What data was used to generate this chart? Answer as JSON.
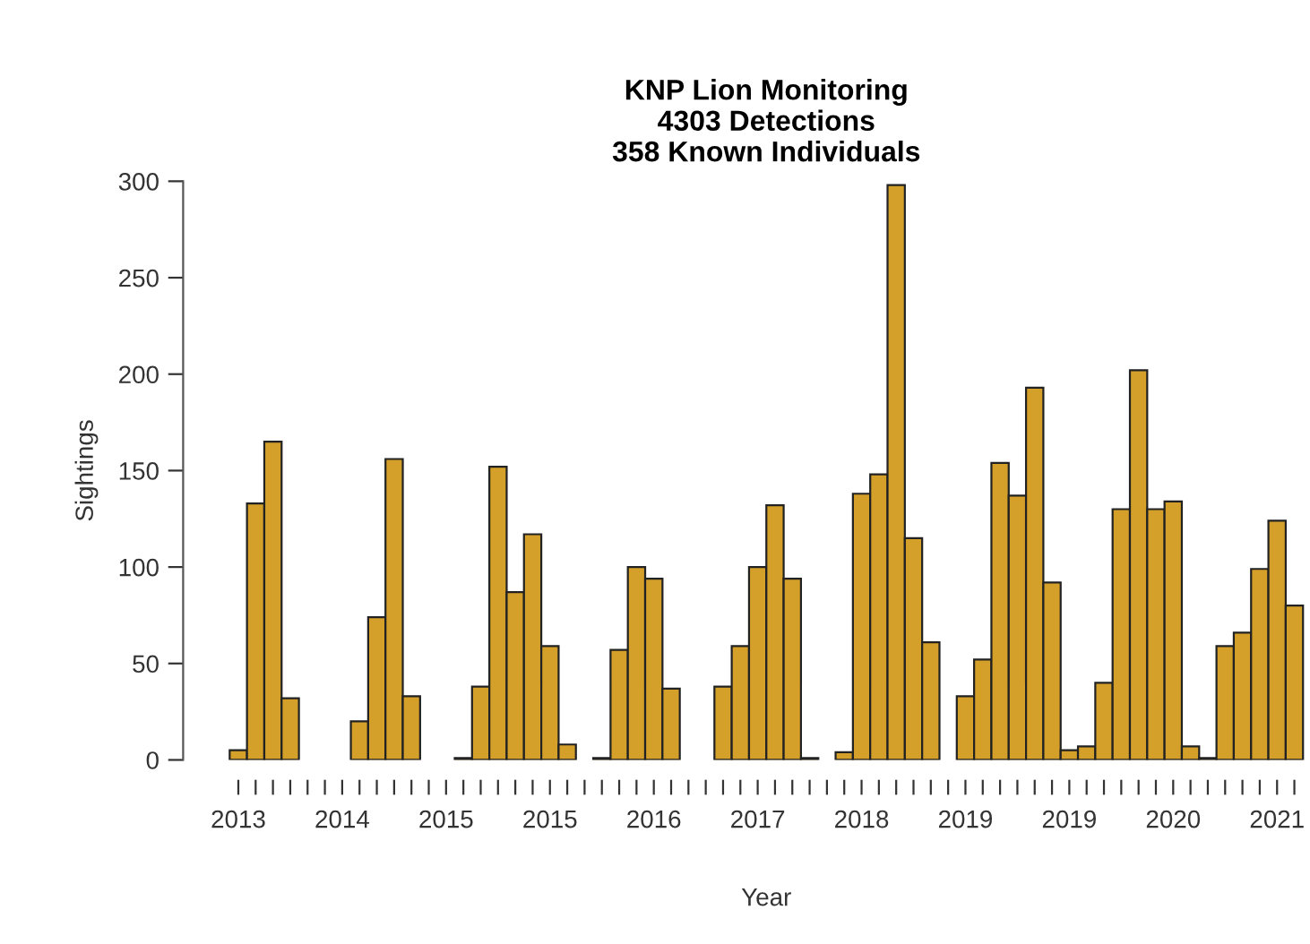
{
  "chart_data": {
    "type": "bar",
    "title": "KNP Lion Monitoring\n4303 Detections\n358 Known Individuals",
    "xlabel": "Year",
    "ylabel": "Sightings",
    "categories": [
      "2013",
      null,
      null,
      null,
      null,
      null,
      "2014",
      null,
      null,
      null,
      null,
      null,
      "2015",
      null,
      null,
      null,
      null,
      null,
      "2015",
      null,
      null,
      null,
      null,
      null,
      "2016",
      null,
      null,
      null,
      null,
      null,
      "2017",
      null,
      null,
      null,
      null,
      null,
      "2018",
      null,
      null,
      null,
      null,
      null,
      "2019",
      null,
      null,
      null,
      null,
      null,
      "2019",
      null,
      null,
      null,
      null,
      null,
      "2020",
      null,
      null,
      null,
      null,
      null,
      "2021",
      null
    ],
    "values": [
      5,
      133,
      165,
      32,
      0,
      0,
      0,
      20,
      74,
      156,
      33,
      0,
      0,
      1,
      38,
      152,
      87,
      117,
      59,
      8,
      0,
      1,
      57,
      100,
      94,
      37,
      0,
      0,
      38,
      59,
      100,
      132,
      94,
      1,
      0,
      4,
      138,
      148,
      298,
      115,
      61,
      0,
      33,
      52,
      154,
      137,
      193,
      92,
      5,
      7,
      40,
      130,
      202,
      130,
      134,
      7,
      1,
      59,
      66,
      99,
      124,
      80
    ],
    "color": "#d4a02a",
    "ylim": [
      0,
      300
    ],
    "yticks": [
      0,
      50,
      100,
      150,
      200,
      250,
      300
    ],
    "grid": false,
    "legend": false
  }
}
